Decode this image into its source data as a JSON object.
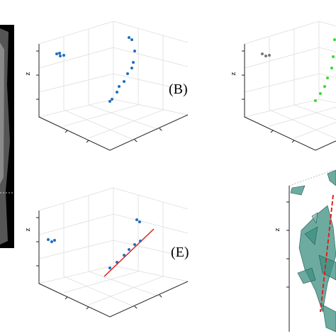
{
  "panels": [
    {
      "label": "(B)",
      "axis_label": "z"
    },
    {
      "axis_label": "z"
    },
    {
      "label": "(E)",
      "axis_label": "z"
    },
    {
      "axis_label": "z"
    }
  ]
}
